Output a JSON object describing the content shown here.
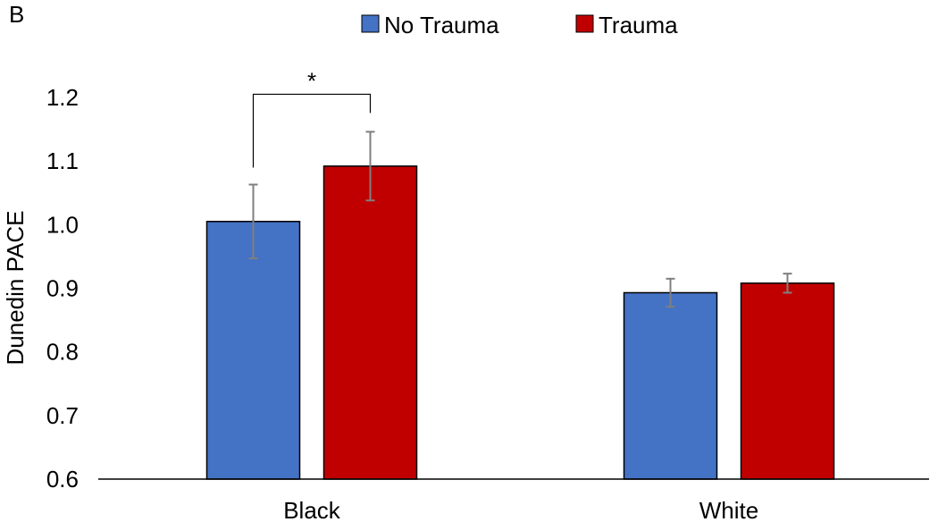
{
  "chart_data": {
    "type": "bar",
    "panel_label": "B",
    "categories": [
      "Black",
      "White"
    ],
    "series": [
      {
        "name": "No Trauma",
        "color": "#4472C4",
        "values": [
          1.005,
          0.893
        ],
        "error": [
          0.058,
          0.022
        ]
      },
      {
        "name": "Trauma",
        "color": "#C00000",
        "values": [
          1.092,
          0.908
        ],
        "error": [
          0.054,
          0.015
        ]
      }
    ],
    "ylabel": "Dunedin PACE",
    "xlabel": "",
    "ylim": [
      0.6,
      1.2
    ],
    "yticks": [
      "0.6",
      "0.7",
      "0.8",
      "0.9",
      "1.0",
      "1.1",
      "1.2"
    ],
    "grid": false,
    "legend_position": "top",
    "significance": {
      "label": "*",
      "category": "Black"
    }
  }
}
